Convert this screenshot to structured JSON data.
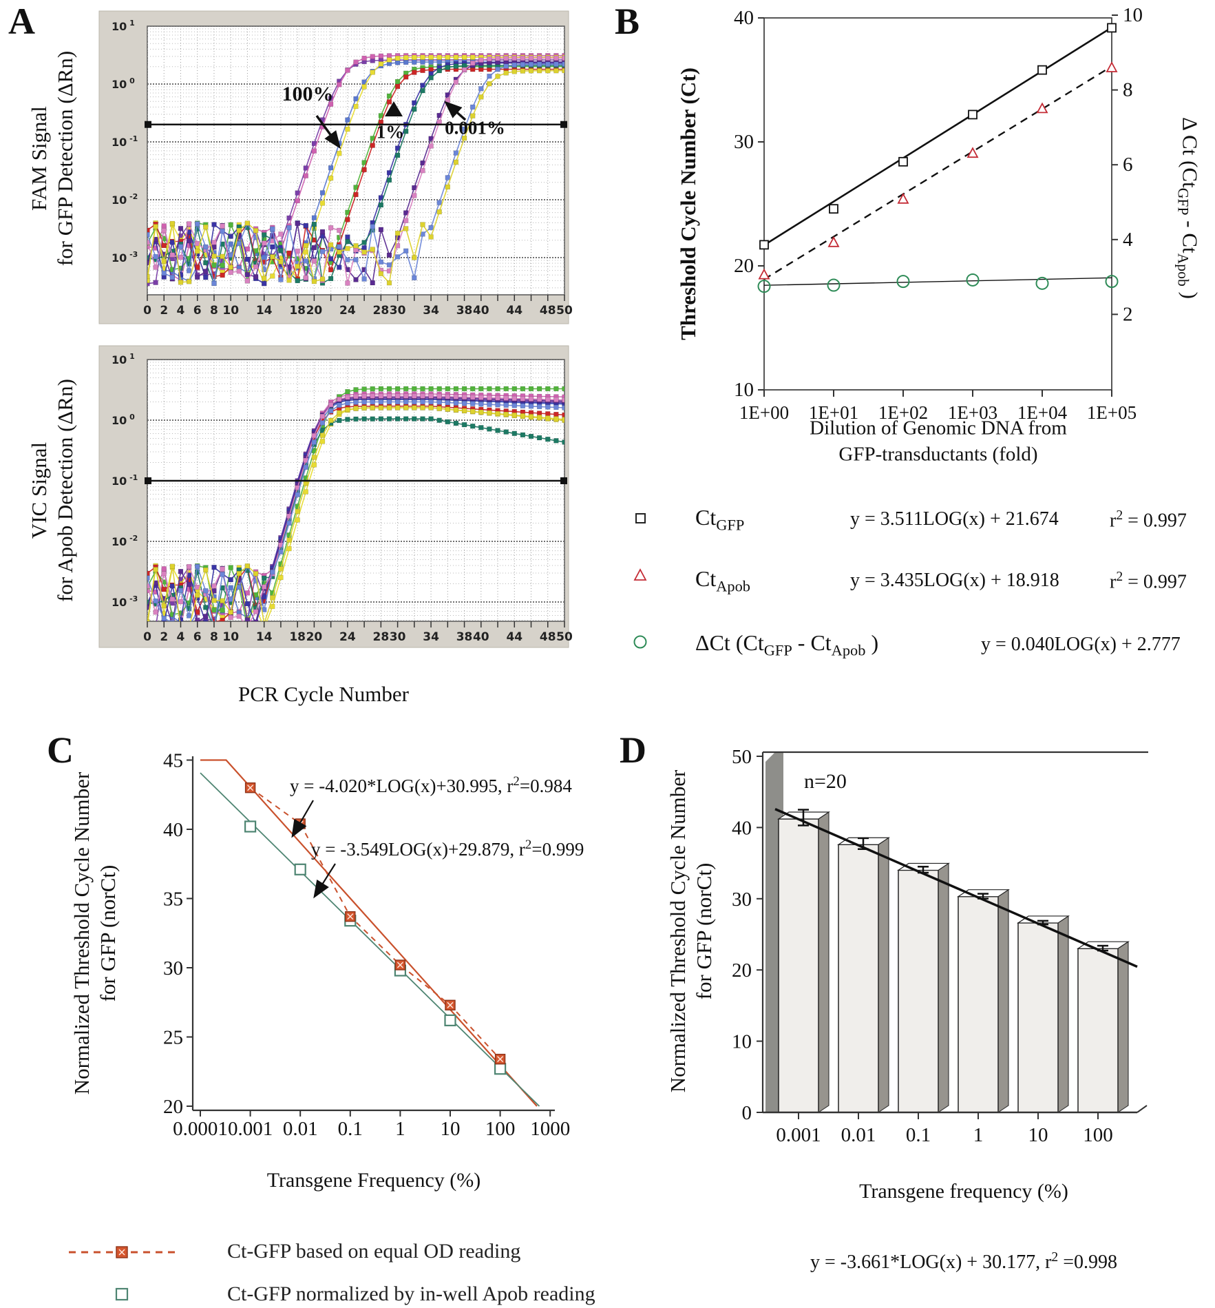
{
  "panels": {
    "a": "A",
    "b": "B",
    "c": "C",
    "d": "D"
  },
  "chart_data": [
    {
      "id": "qpcr_fam",
      "type": "line",
      "ylabel_lines": [
        "FAM Signal",
        "for GFP Detection (ΔRn)"
      ],
      "xlabel": "PCR Cycle Number",
      "x_ticks": [
        0,
        2,
        4,
        6,
        8,
        10,
        14,
        18,
        20,
        24,
        28,
        30,
        34,
        38,
        40,
        44,
        48,
        50
      ],
      "y_tick_exponents": [
        1,
        0,
        -1,
        -2,
        -3
      ],
      "threshold": 0.2,
      "annotations": {
        "p100": "100%",
        "p1": "1%",
        "p0001": "0.001%"
      },
      "series": [
        {
          "color": "#7a3fa8",
          "ct": 20.8,
          "plateau": 2.6
        },
        {
          "color": "#cf62b0",
          "ct": 21.1,
          "plateau": 3.1
        },
        {
          "color": "#5b79cf",
          "ct": 23.8,
          "plateau": 2.4
        },
        {
          "color": "#e8dc33",
          "ct": 24.2,
          "plateau": 2.9
        },
        {
          "color": "#52b43c",
          "ct": 27.6,
          "plateau": 2.0
        },
        {
          "color": "#cc2626",
          "ct": 27.9,
          "plateau": 1.8
        },
        {
          "color": "#3a35a5",
          "ct": 31.0,
          "plateau": 2.3
        },
        {
          "color": "#1d7a64",
          "ct": 31.3,
          "plateau": 2.1
        },
        {
          "color": "#5a2b91",
          "ct": 34.6,
          "plateau": 2.4
        },
        {
          "color": "#d982c0",
          "ct": 34.9,
          "plateau": 2.8
        },
        {
          "color": "#6b86d8",
          "ct": 38.2,
          "plateau": 2.2
        },
        {
          "color": "#ddd22e",
          "ct": 38.6,
          "plateau": 1.7
        }
      ]
    },
    {
      "id": "qpcr_vic",
      "type": "line",
      "ylabel_lines": [
        "VIC Signal",
        "for Apob Detection (ΔRn)"
      ],
      "x_ticks": [
        0,
        2,
        4,
        6,
        8,
        10,
        14,
        18,
        20,
        24,
        28,
        30,
        34,
        38,
        40,
        44,
        48,
        50
      ],
      "y_tick_exponents": [
        1,
        0,
        -1,
        -2,
        -3
      ],
      "threshold": 0.1,
      "series": [
        {
          "color": "#7a3fa8",
          "ct": 18.0,
          "plateau": 2.3,
          "decay": 0.004
        },
        {
          "color": "#cf62b0",
          "ct": 18.1,
          "plateau": 2.7,
          "decay": 0.003
        },
        {
          "color": "#5b79cf",
          "ct": 18.3,
          "plateau": 2.2,
          "decay": 0.005
        },
        {
          "color": "#e8dc33",
          "ct": 19.4,
          "plateau": 1.6,
          "decay": 0.013
        },
        {
          "color": "#52b43c",
          "ct": 18.9,
          "plateau": 3.3,
          "decay": 0.0
        },
        {
          "color": "#cc2626",
          "ct": 18.2,
          "plateau": 1.7,
          "decay": 0.009
        },
        {
          "color": "#3a35a5",
          "ct": 18.05,
          "plateau": 2.2,
          "decay": 0.004
        },
        {
          "color": "#1d7a64",
          "ct": 18.4,
          "plateau": 1.05,
          "decay": 0.024
        },
        {
          "color": "#5a2b91",
          "ct": 18.15,
          "plateau": 2.4,
          "decay": 0.004
        },
        {
          "color": "#d982c0",
          "ct": 18.25,
          "plateau": 2.5,
          "decay": 0.004
        },
        {
          "color": "#6b86d8",
          "ct": 18.5,
          "plateau": 2.0,
          "decay": 0.006
        },
        {
          "color": "#ddd22e",
          "ct": 19.1,
          "plateau": 1.6,
          "decay": 0.012
        }
      ]
    },
    {
      "id": "ct_vs_dilution",
      "type": "scatter",
      "ylabel_left": "Threshold Cycle Number (Ct)",
      "ylabel_right_parts": {
        "p1": "Δ Ct (Ct",
        "s1": "GFP",
        "p2": " - Ct",
        "s2": "Apob",
        "p3": " )"
      },
      "xlabel_lines": [
        "Dilution of Genomic DNA from",
        "GFP-transductants (fold)"
      ],
      "x_tick_labels": [
        "1E+00",
        "1E+01",
        "1E+02",
        "1E+03",
        "1E+04",
        "1E+05"
      ],
      "y_ticks_left": [
        10,
        20,
        30,
        40
      ],
      "y_ticks_right": [
        2,
        4,
        6,
        8,
        10
      ],
      "series": [
        {
          "name": "CtGFP",
          "marker": "square",
          "color": "#1a1a1a",
          "y": [
            21.7,
            24.6,
            28.4,
            32.2,
            35.8,
            39.2
          ],
          "fit": {
            "slope": 3.511,
            "intercept": 21.674
          },
          "line": "solid"
        },
        {
          "name": "CtApob",
          "marker": "triangle",
          "color": "#c42b35",
          "y": [
            19.3,
            21.9,
            25.4,
            29.1,
            32.7,
            36.0
          ],
          "fit": {
            "slope": 3.435,
            "intercept": 18.918
          },
          "line": "dashed"
        },
        {
          "name": "dCt",
          "marker": "circle",
          "color": "#2e8b57",
          "axis": "right",
          "y": [
            2.75,
            2.78,
            2.88,
            2.92,
            2.83,
            2.88
          ],
          "fit": {
            "slope": 0.04,
            "intercept": 2.777
          },
          "line": "thin"
        }
      ],
      "legend": [
        {
          "label_base": "Ct",
          "label_sub": "GFP",
          "eq": "y = 3.511LOG(x) + 21.674",
          "r2_pre": "r",
          "r2_post": " = 0.997"
        },
        {
          "label_base": "Ct",
          "label_sub": "Apob",
          "eq": "y = 3.435LOG(x) + 18.918",
          "r2_pre": "r",
          "r2_post": " = 0.997"
        },
        {
          "label_parts": {
            "p1": "ΔCt (Ct",
            "s1": "GFP",
            "p2": " - Ct",
            "s2": "Apob",
            "p3": " )"
          },
          "eq": "y = 0.040LOG(x) + 2.777"
        }
      ]
    },
    {
      "id": "norct_lines",
      "type": "line",
      "ylabel_lines": [
        "Normalized Threshold Cycle Number",
        "for GFP (norCt)"
      ],
      "xlabel": "Transgene Frequency (%)",
      "x_tick_labels": [
        "0.0001",
        "0.001",
        "0.01",
        "0.1",
        "1",
        "10",
        "100",
        "1000"
      ],
      "y_ticks": [
        20,
        25,
        30,
        35,
        40,
        45
      ],
      "series": [
        {
          "name": "Ct-GFP based on equal OD reading",
          "color": "#c9512c",
          "fill": "#d4562e",
          "marker": "crossed-square",
          "x": [
            0.001,
            0.01,
            0.1,
            1,
            10,
            100
          ],
          "y": [
            43.0,
            40.4,
            33.7,
            30.2,
            27.3,
            23.4
          ],
          "fit": {
            "slope": -4.02,
            "intercept": 30.995
          }
        },
        {
          "name": "Ct-GFP normalized by in-well Apob reading",
          "color": "#4e8572",
          "marker": "open-square",
          "x": [
            0.001,
            0.01,
            0.1,
            1,
            10,
            100
          ],
          "y": [
            40.2,
            37.1,
            33.4,
            29.8,
            26.2,
            22.7
          ],
          "fit": {
            "slope": -3.549,
            "intercept": 29.879
          }
        }
      ],
      "equations": [
        {
          "pre": "y = -4.020*LOG(x)+30.995, r",
          "post": "=0.984"
        },
        {
          "pre": "y = -3.549LOG(x)+29.879, r",
          "post": "=0.999"
        }
      ],
      "legend": [
        {
          "label": "Ct-GFP based on equal OD reading"
        },
        {
          "label": "Ct-GFP normalized by in-well Apob reading"
        }
      ]
    },
    {
      "id": "norct_bars",
      "type": "bar",
      "ylabel_lines": [
        "Normalized Threshold Cycle Number",
        "for GFP (norCt)"
      ],
      "xlabel": "Transgene frequency (%)",
      "categories": [
        "0.001",
        "0.01",
        "0.1",
        "1",
        "10",
        "100"
      ],
      "values": [
        41.2,
        37.6,
        34.0,
        30.3,
        26.6,
        23.0
      ],
      "errors": [
        1.3,
        0.9,
        0.5,
        0.4,
        0.3,
        0.4
      ],
      "y_ticks": [
        0,
        10,
        20,
        30,
        40,
        50
      ],
      "n_label": "n=20",
      "trend": {
        "slope": -3.661,
        "intercept": 30.177
      },
      "equation": {
        "pre": "y = -3.661*LOG(x) + 30.177,  r",
        "post": " =0.998"
      }
    }
  ]
}
